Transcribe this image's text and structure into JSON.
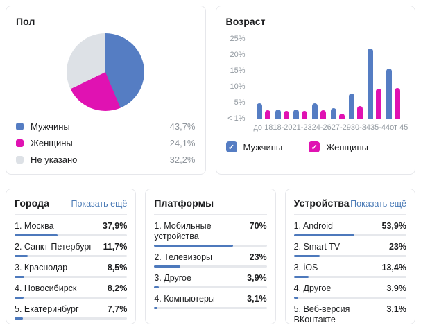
{
  "colors": {
    "male_blue": "#557dc3",
    "female_magenta": "#e012b2",
    "unknown_gray": "#dde1e6",
    "list_bar_fill": "#4d79bc",
    "link_blue": "#4b7bb6",
    "muted_text": "#8f959c",
    "axis_text": "#939aa1",
    "divider": "#e7e8ec"
  },
  "chart_data": [
    {
      "id": "gender-pie",
      "type": "pie",
      "title": "Пол",
      "labels": [
        "Мужчины",
        "Женщины",
        "Не указано"
      ],
      "values": [
        43.7,
        24.1,
        32.2
      ],
      "value_labels": [
        "43,7%",
        "24,1%",
        "32,2%"
      ],
      "colors": [
        "#557dc3",
        "#e012b2",
        "#dde1e6"
      ],
      "legend_position": "bottom"
    },
    {
      "id": "age-bars",
      "type": "bar",
      "title": "Возраст",
      "categories": [
        "до 18",
        "18-20",
        "21-23",
        "24-26",
        "27-29",
        "30-34",
        "35-44",
        "от 45"
      ],
      "series": [
        {
          "name": "Мужчины",
          "color": "#557dc3",
          "checked": true,
          "values": [
            4.8,
            2.8,
            2.8,
            4.7,
            3.2,
            7.8,
            22,
            15.7
          ]
        },
        {
          "name": "Женщины",
          "color": "#e012b2",
          "checked": true,
          "values": [
            2.5,
            2.4,
            2.3,
            2.5,
            1.5,
            4.0,
            9.4,
            9.5
          ]
        }
      ],
      "ylim": [
        0,
        25
      ],
      "y_tick_labels": [
        "25%",
        "20%",
        "15%",
        "10%",
        "5%",
        "< 1%"
      ],
      "grid": false,
      "legend_position": "bottom"
    },
    {
      "id": "cities",
      "type": "table",
      "title": "Города",
      "show_more_label": "Показать ещё",
      "rows": [
        {
          "label": "1. Москва",
          "value": 37.9,
          "value_label": "37,9%"
        },
        {
          "label": "2. Санкт-Петербург",
          "value": 11.7,
          "value_label": "11,7%"
        },
        {
          "label": "3. Краснодар",
          "value": 8.5,
          "value_label": "8,5%"
        },
        {
          "label": "4. Новосибирск",
          "value": 8.2,
          "value_label": "8,2%"
        },
        {
          "label": "5. Екатеринбург",
          "value": 7.7,
          "value_label": "7,7%"
        }
      ]
    },
    {
      "id": "platforms",
      "type": "table",
      "title": "Платформы",
      "show_more_label": "",
      "rows": [
        {
          "label": "1. Мобильные устройства",
          "value": 70,
          "value_label": "70%"
        },
        {
          "label": "2. Телевизоры",
          "value": 23,
          "value_label": "23%"
        },
        {
          "label": "3. Другое",
          "value": 3.9,
          "value_label": "3,9%"
        },
        {
          "label": "4. Компьютеры",
          "value": 3.1,
          "value_label": "3,1%"
        }
      ]
    },
    {
      "id": "devices",
      "type": "table",
      "title": "Устройства",
      "show_more_label": "Показать ещё",
      "rows": [
        {
          "label": "1. Android",
          "value": 53.9,
          "value_label": "53,9%"
        },
        {
          "label": "2. Smart TV",
          "value": 23,
          "value_label": "23%"
        },
        {
          "label": "3. iOS",
          "value": 13.4,
          "value_label": "13,4%"
        },
        {
          "label": "4. Другое",
          "value": 3.9,
          "value_label": "3,9%"
        },
        {
          "label": "5. Веб-версия ВКонтакте",
          "value": 3.1,
          "value_label": "3,1%"
        }
      ]
    }
  ]
}
